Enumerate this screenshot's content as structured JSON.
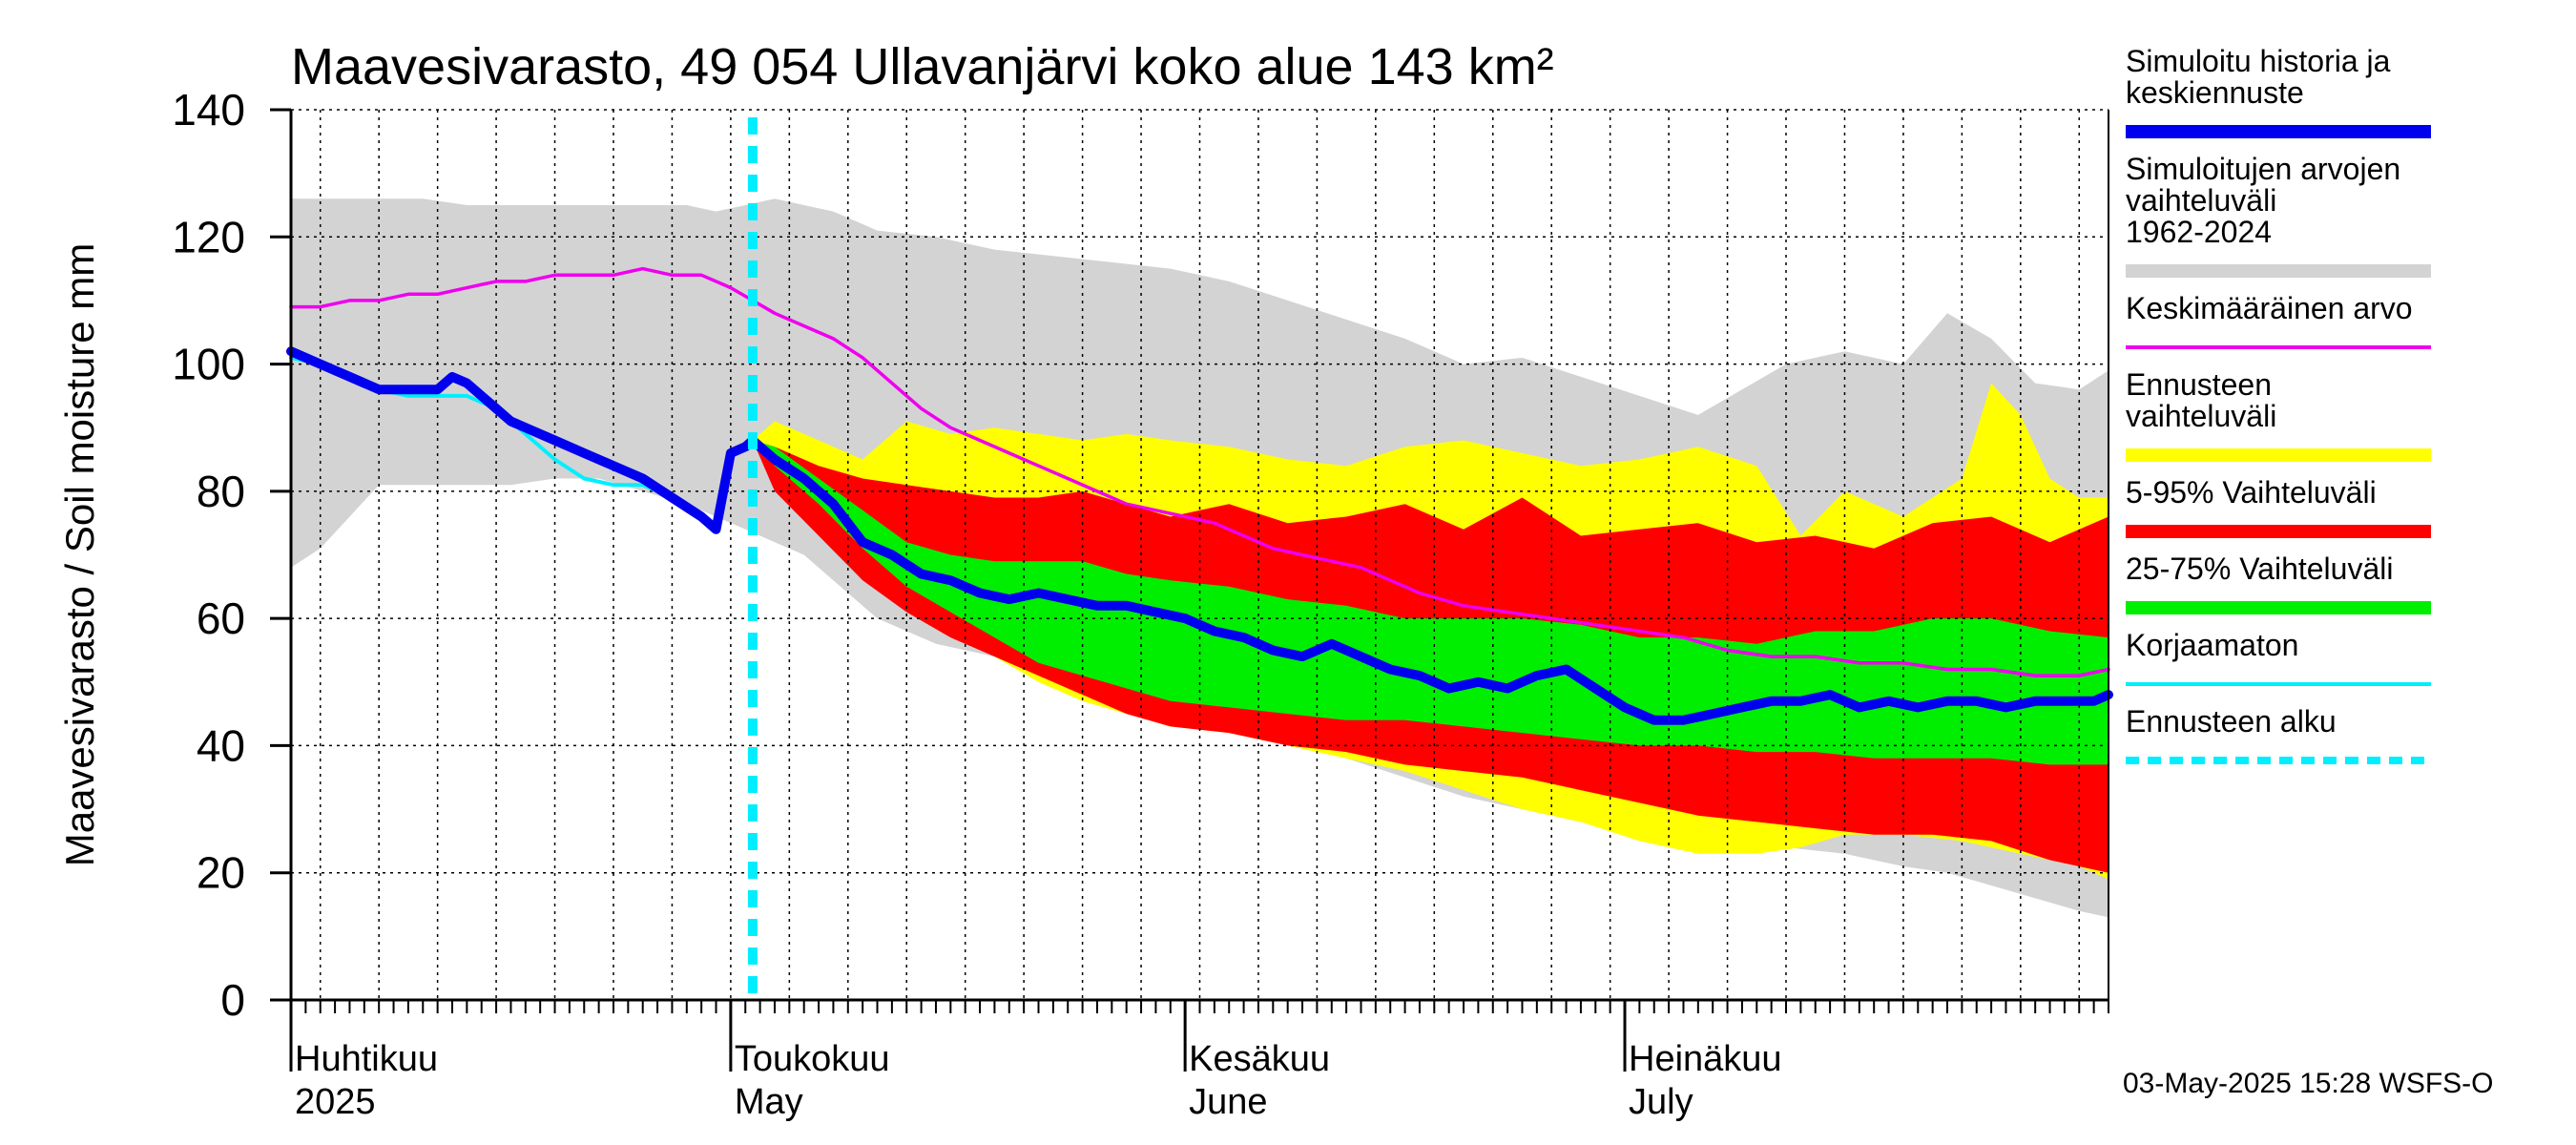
{
  "chart_data": {
    "type": "area",
    "title": "Maavesivarasto, 49 054 Ullavanjärvi koko alue 143 km²",
    "ylabel": "Maavesivarasto / Soil moisture   mm",
    "ylim": [
      0,
      140
    ],
    "yticks": [
      0,
      20,
      40,
      60,
      80,
      100,
      120,
      140
    ],
    "grid": true,
    "x_range_days": [
      0,
      124
    ],
    "forecast_start_day": 31.5,
    "month_labels": [
      {
        "fi": "Huhtikuu",
        "en": "2025",
        "day": 0
      },
      {
        "fi": "Toukokuu",
        "en": "May",
        "day": 30
      },
      {
        "fi": "Kesäkuu",
        "en": "June",
        "day": 61
      },
      {
        "fi": "Heinäkuu",
        "en": "July",
        "day": 91
      }
    ],
    "legend": [
      {
        "label": "Simuloitu historia ja keskiennuste",
        "color": "#0000ee",
        "style": "thick"
      },
      {
        "label": "Simuloitujen arvojen vaihteluväli 1962-2024",
        "color": "#d3d3d3",
        "style": "band"
      },
      {
        "label": "Keskimääräinen arvo",
        "color": "#ee00ee",
        "style": "line"
      },
      {
        "label": "Ennusteen vaihteluväli",
        "color": "#ffff00",
        "style": "band"
      },
      {
        "label": "5-95% Vaihteluväli",
        "color": "#ff0000",
        "style": "band"
      },
      {
        "label": "25-75% Vaihteluväli",
        "color": "#00ee00",
        "style": "band"
      },
      {
        "label": "Korjaamaton",
        "color": "#00eeff",
        "style": "line"
      },
      {
        "label": "Ennusteen alku",
        "color": "#00eeff",
        "style": "dashed"
      }
    ],
    "series": [
      {
        "name": "Simuloitujen arvojen vaihteluväli 1962-2024",
        "kind": "band",
        "color": "#d3d3d3",
        "x": [
          0,
          2,
          4,
          6,
          9,
          12,
          15,
          18,
          21,
          24,
          27,
          29,
          31,
          33,
          35,
          37,
          40,
          44,
          48,
          52,
          56,
          60,
          64,
          68,
          72,
          76,
          80,
          84,
          88,
          92,
          96,
          99,
          102,
          106,
          110,
          113,
          116,
          119,
          122,
          124
        ],
        "upper": [
          126,
          126,
          126,
          126,
          126,
          125,
          125,
          125,
          125,
          125,
          125,
          124,
          125,
          126,
          125,
          124,
          121,
          120,
          118,
          117,
          116,
          115,
          113,
          110,
          107,
          104,
          100,
          101,
          98,
          95,
          92,
          96,
          100,
          102,
          100,
          108,
          104,
          97,
          96,
          99
        ],
        "lower": [
          68,
          71,
          76,
          81,
          81,
          81,
          81,
          82,
          82,
          80,
          78,
          76,
          74,
          72,
          70,
          66,
          60,
          56,
          54,
          52,
          50,
          47,
          44,
          41,
          38,
          35,
          32,
          30,
          28,
          27,
          26,
          24,
          24,
          23,
          21,
          20,
          18,
          16,
          14,
          13
        ]
      },
      {
        "name": "Ennusteen vaihteluväli",
        "kind": "band",
        "color": "#ffff00",
        "x": [
          31.5,
          33,
          36,
          39,
          42,
          45,
          48,
          51,
          54,
          57,
          60,
          64,
          68,
          72,
          76,
          80,
          84,
          88,
          92,
          96,
          100,
          103,
          106,
          110,
          114,
          116,
          118,
          120,
          122,
          124
        ],
        "upper": [
          88,
          91,
          88,
          85,
          91,
          89,
          90,
          89,
          88,
          89,
          88,
          87,
          85,
          84,
          87,
          88,
          86,
          84,
          85,
          87,
          84,
          73,
          80,
          76,
          82,
          97,
          92,
          82,
          79,
          79
        ],
        "lower": [
          88,
          81,
          76,
          69,
          62,
          58,
          54,
          50,
          47,
          45,
          43,
          42,
          40,
          38,
          36,
          33,
          30,
          28,
          25,
          23,
          23,
          24,
          26,
          26,
          25,
          24,
          23,
          22,
          21,
          19
        ]
      },
      {
        "name": "5-95% Vaihteluväli",
        "kind": "band",
        "color": "#ff0000",
        "x": [
          31.5,
          33,
          36,
          39,
          42,
          45,
          48,
          51,
          54,
          57,
          60,
          64,
          68,
          72,
          76,
          80,
          84,
          88,
          92,
          96,
          100,
          104,
          108,
          112,
          116,
          120,
          124
        ],
        "upper": [
          88,
          87,
          84,
          82,
          81,
          80,
          79,
          79,
          80,
          78,
          76,
          78,
          75,
          76,
          78,
          74,
          79,
          73,
          74,
          75,
          72,
          73,
          71,
          75,
          76,
          72,
          76
        ],
        "lower": [
          88,
          80,
          73,
          66,
          61,
          57,
          54,
          51,
          48,
          45,
          43,
          42,
          40,
          39,
          37,
          36,
          35,
          33,
          31,
          29,
          28,
          27,
          26,
          26,
          25,
          22,
          20
        ]
      },
      {
        "name": "25-75% Vaihteluväli",
        "kind": "band",
        "color": "#00ee00",
        "x": [
          31.5,
          33,
          36,
          39,
          42,
          45,
          48,
          51,
          54,
          57,
          60,
          64,
          68,
          72,
          76,
          80,
          84,
          88,
          92,
          96,
          100,
          104,
          108,
          112,
          116,
          120,
          124
        ],
        "upper": [
          88,
          87,
          82,
          77,
          72,
          70,
          69,
          69,
          69,
          67,
          66,
          65,
          63,
          62,
          60,
          60,
          60,
          59,
          57,
          57,
          56,
          58,
          58,
          60,
          60,
          58,
          57
        ],
        "lower": [
          88,
          84,
          78,
          71,
          65,
          61,
          57,
          53,
          51,
          49,
          47,
          46,
          45,
          44,
          44,
          43,
          42,
          41,
          40,
          40,
          39,
          39,
          38,
          38,
          38,
          37,
          37
        ]
      },
      {
        "name": "Keskimääräinen arvo",
        "kind": "line",
        "color": "#ee00ee",
        "x": [
          0,
          2,
          4,
          6,
          8,
          10,
          12,
          14,
          16,
          18,
          20,
          22,
          24,
          26,
          28,
          30,
          31.5,
          33,
          35,
          37,
          39,
          41,
          43,
          45,
          47,
          49,
          51,
          53,
          55,
          57,
          59,
          61,
          63,
          65,
          67,
          69,
          71,
          73,
          75,
          77,
          80,
          83,
          86,
          89,
          92,
          95,
          98,
          101,
          104,
          107,
          110,
          113,
          116,
          119,
          122,
          124
        ],
        "values": [
          109,
          109,
          110,
          110,
          111,
          111,
          112,
          113,
          113,
          114,
          114,
          114,
          115,
          114,
          114,
          112,
          110,
          108,
          106,
          104,
          101,
          97,
          93,
          90,
          88,
          86,
          84,
          82,
          80,
          78,
          77,
          76,
          75,
          73,
          71,
          70,
          69,
          68,
          66,
          64,
          62,
          61,
          60,
          59,
          58,
          57,
          55,
          54,
          54,
          53,
          53,
          52,
          52,
          51,
          51,
          52
        ]
      },
      {
        "name": "Korjaamaton",
        "kind": "line",
        "color": "#00eeff",
        "x": [
          0,
          2,
          4,
          6,
          8,
          10,
          12,
          14,
          16,
          18,
          20,
          22,
          24,
          26,
          28,
          29
        ],
        "values": [
          101,
          100,
          98,
          96,
          95,
          95,
          95,
          93,
          89,
          85,
          82,
          81,
          81,
          79,
          76,
          74
        ]
      },
      {
        "name": "Simuloitu historia ja keskiennuste",
        "kind": "line",
        "color": "#0000ee",
        "x": [
          0,
          2,
          4,
          6,
          8,
          10,
          11,
          12,
          13,
          14,
          15,
          16,
          18,
          20,
          22,
          24,
          26,
          28,
          29,
          30,
          31,
          31.5,
          33,
          35,
          37,
          39,
          41,
          43,
          45,
          47,
          49,
          51,
          53,
          55,
          57,
          59,
          61,
          63,
          65,
          67,
          69,
          71,
          73,
          75,
          77,
          79,
          81,
          83,
          85,
          87,
          89,
          91,
          93,
          95,
          97,
          99,
          101,
          103,
          105,
          107,
          109,
          111,
          113,
          115,
          117,
          119,
          121,
          123,
          124
        ],
        "values": [
          102,
          100,
          98,
          96,
          96,
          96,
          98,
          97,
          95,
          93,
          91,
          90,
          88,
          86,
          84,
          82,
          79,
          76,
          74,
          86,
          87,
          88,
          85,
          82,
          78,
          72,
          70,
          67,
          66,
          64,
          63,
          64,
          63,
          62,
          62,
          61,
          60,
          58,
          57,
          55,
          54,
          56,
          54,
          52,
          51,
          49,
          50,
          49,
          51,
          52,
          49,
          46,
          44,
          44,
          45,
          46,
          47,
          47,
          48,
          46,
          47,
          46,
          47,
          47,
          46,
          47,
          47,
          47,
          48
        ]
      }
    ]
  },
  "footer": "03-May-2025 15:28 WSFS-O"
}
